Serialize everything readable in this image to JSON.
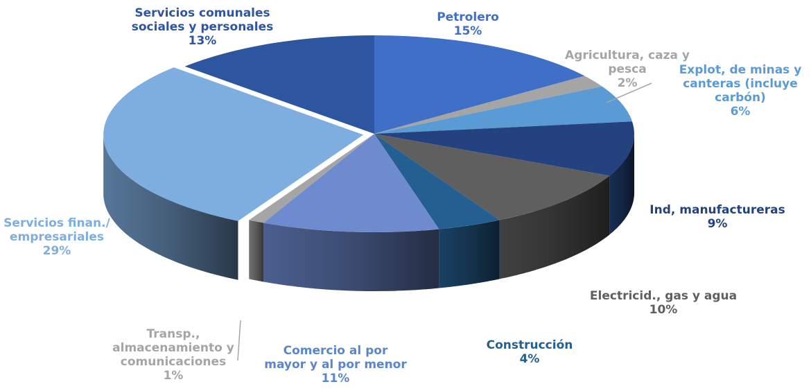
{
  "chart_data": {
    "type": "pie",
    "style": "3d-exploded",
    "legend": "none",
    "slices": [
      {
        "label_lines": [
          "Petrolero"
        ],
        "value": 15,
        "value_label": "15%",
        "color": "#3F6FC6",
        "label_color": "#3F6FC6"
      },
      {
        "label_lines": [
          "Agricultura, caza y",
          "pesca"
        ],
        "value": 2,
        "value_label": "2%",
        "color": "#A5A5A5",
        "label_color": "#A5A5A5"
      },
      {
        "label_lines": [
          "Explot, de minas y",
          "canteras (incluye",
          "carbón)"
        ],
        "value": 6,
        "value_label": "6%",
        "color": "#5B9BD5",
        "label_color": "#5B9BD5"
      },
      {
        "label_lines": [
          "Ind, manufactureras"
        ],
        "value": 9,
        "value_label": "9%",
        "color": "#23427F",
        "label_color": "#23427F"
      },
      {
        "label_lines": [
          "Electricid., gas y agua"
        ],
        "value": 10,
        "value_label": "10%",
        "color": "#5F5F5F",
        "label_color": "#5F5F5F"
      },
      {
        "label_lines": [
          "Construcción"
        ],
        "value": 4,
        "value_label": "4%",
        "color": "#255E91",
        "label_color": "#255E91"
      },
      {
        "label_lines": [
          "Comercio al por",
          "mayor y al por menor"
        ],
        "value": 11,
        "value_label": "11%",
        "color": "#6E8BD0",
        "label_color": "#5B85CC"
      },
      {
        "label_lines": [
          "Transp.,",
          "almacenamiento y",
          "comunicaciones"
        ],
        "value": 1,
        "value_label": "1%",
        "color": "#A5A5A5",
        "label_color": "#A5A5A5"
      },
      {
        "label_lines": [
          "Servicios finan./",
          "empresariales"
        ],
        "value": 29,
        "value_label": "29%",
        "color": "#7EAEE0",
        "label_color": "#7EAEE0"
      },
      {
        "label_lines": [
          "Servicios comunales",
          "sociales y personales"
        ],
        "value": 13,
        "value_label": "13%",
        "color": "#2E55A0",
        "label_color": "#2E55A0"
      }
    ]
  }
}
